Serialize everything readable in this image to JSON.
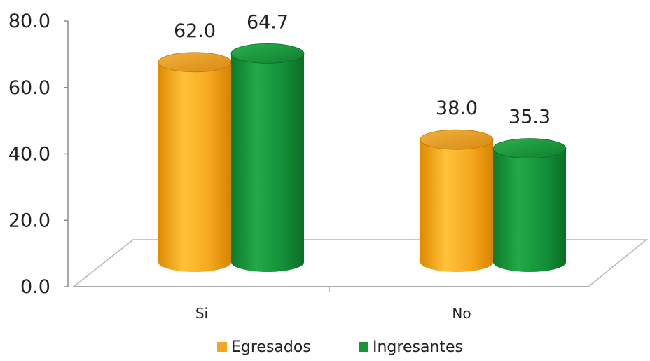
{
  "chart_data": {
    "type": "bar",
    "categories": [
      "Si",
      "No"
    ],
    "series": [
      {
        "name": "Egresados",
        "values": [
          62.0,
          38.0
        ],
        "color": "#F5A623"
      },
      {
        "name": "Ingresantes",
        "values": [
          64.7,
          35.3
        ],
        "color": "#17933A"
      }
    ],
    "data_labels": [
      [
        "62.0",
        "38.0"
      ],
      [
        "64.7",
        "35.3"
      ]
    ],
    "yticks": [
      "80.0",
      "60.0",
      "40.0",
      "20.0",
      "0.0"
    ],
    "ylim": [
      0,
      80
    ],
    "grid": false,
    "legend_position": "bottom",
    "bar_style": "3d-cylinder"
  }
}
